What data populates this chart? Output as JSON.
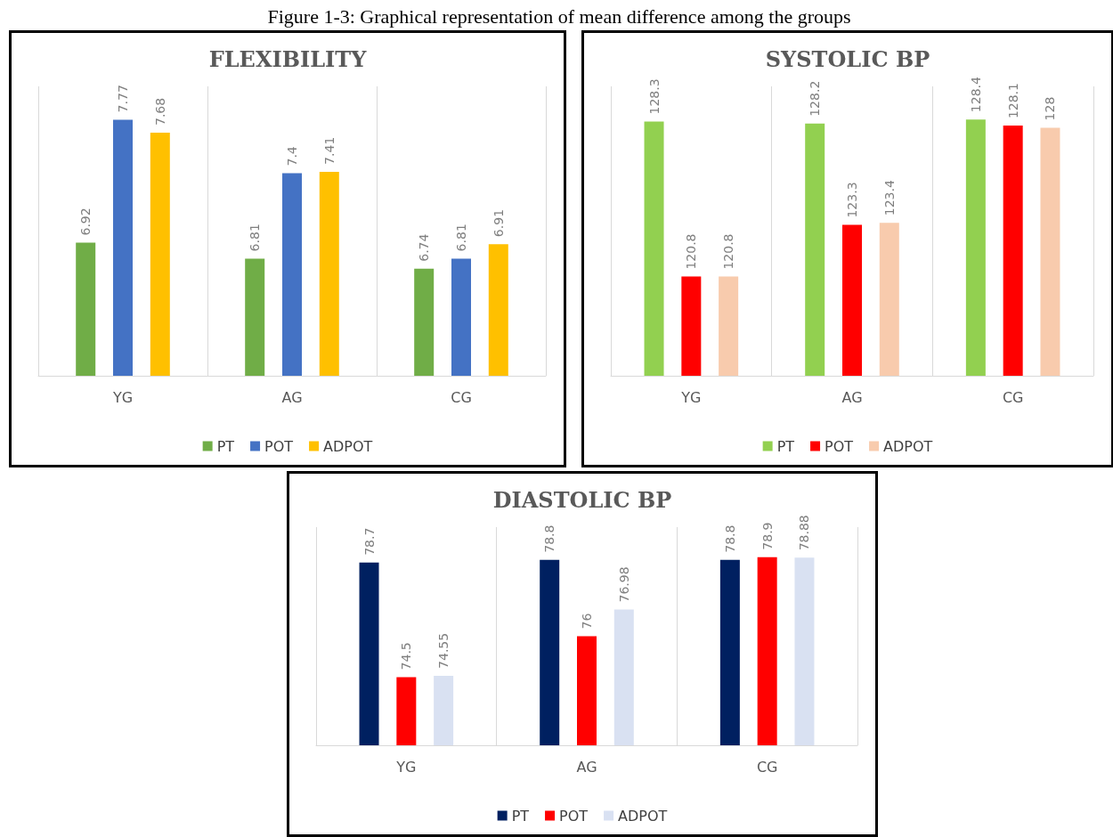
{
  "chart_data": [
    {
      "type": "bar",
      "title": "FLEXIBILITY",
      "annotations": [
        "Figure 1-3: Graphical representation of mean difference among the groups"
      ],
      "categories": [
        "YG",
        "AG",
        "CG"
      ],
      "ylim": [
        6,
        8
      ],
      "grid": "x",
      "legend": "bottom",
      "data_labels": true,
      "series": [
        {
          "name": "PT",
          "color": "#70ad47",
          "values": [
            6.92,
            6.81,
            6.74
          ]
        },
        {
          "name": "POT",
          "color": "#4472c4",
          "values": [
            7.77,
            7.4,
            6.81
          ]
        },
        {
          "name": "ADPOT",
          "color": "#ffc000",
          "values": [
            7.68,
            7.41,
            6.91
          ]
        }
      ]
    },
    {
      "type": "bar",
      "title": "SYSTOLIC BP",
      "categories": [
        "YG",
        "AG",
        "CG"
      ],
      "ylim": [
        116,
        130
      ],
      "grid": "x",
      "legend": "bottom",
      "data_labels": true,
      "series": [
        {
          "name": "PT",
          "color": "#92d050",
          "values": [
            128.3,
            128.2,
            128.4
          ]
        },
        {
          "name": "POT",
          "color": "#ff0000",
          "values": [
            120.8,
            123.3,
            128.1
          ]
        },
        {
          "name": "ADPOT",
          "color": "#f8cbad",
          "values": [
            120.8,
            123.4,
            128
          ]
        }
      ]
    },
    {
      "type": "bar",
      "title": "DIASTOLIC BP",
      "categories": [
        "YG",
        "AG",
        "CG"
      ],
      "ylim": [
        72,
        80
      ],
      "grid": "x",
      "legend": "bottom",
      "data_labels": true,
      "series": [
        {
          "name": "PT",
          "color": "#002060",
          "values": [
            78.7,
            78.8,
            78.8
          ]
        },
        {
          "name": "POT",
          "color": "#ff0000",
          "values": [
            74.5,
            76,
            78.9
          ]
        },
        {
          "name": "ADPOT",
          "color": "#d9e1f2",
          "values": [
            74.55,
            76.98,
            78.88
          ]
        }
      ]
    }
  ]
}
